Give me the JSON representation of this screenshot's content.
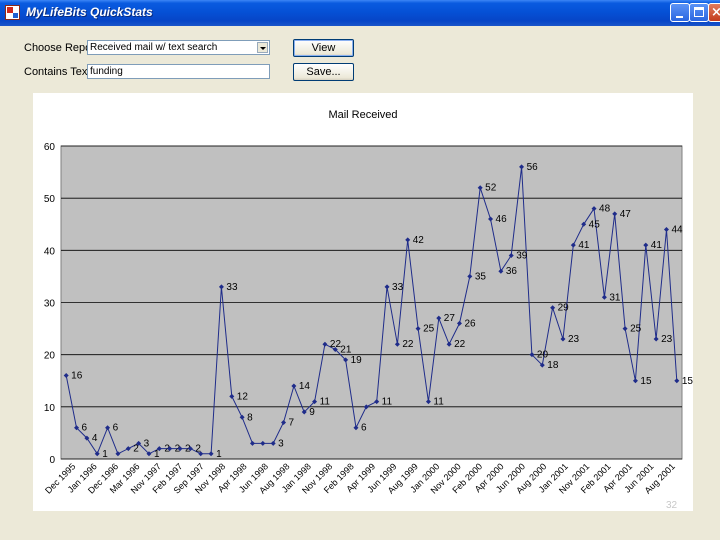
{
  "window": {
    "title": "MyLifeBits QuickStats"
  },
  "form": {
    "report_label": "Choose Report:",
    "report_value": "Received mail w/ text search",
    "contains_label": "Contains Text:",
    "contains_value": "funding",
    "view_button": "View",
    "save_button": "Save..."
  },
  "page_number": "32",
  "colors": {
    "plot_background": "#c0c0c0",
    "series_line": "#1f2c8a"
  },
  "chart_data": {
    "type": "line",
    "title": "Mail Received",
    "xlabel": "",
    "ylabel": "",
    "ylim": [
      0,
      60
    ],
    "yticks": [
      0,
      10,
      20,
      30,
      40,
      50,
      60
    ],
    "ytick_labels": [
      "0",
      "10",
      "20",
      "30",
      "40",
      "50",
      "60"
    ],
    "grid": true,
    "x_tick_labels": [
      "Dec 1995",
      "Jan 1996",
      "Dec 1996",
      "Mar 1996",
      "Nov 1997",
      "Feb 1997",
      "Sep 1997",
      "Nov 1998",
      "Apr 1998",
      "Jun 1998",
      "Aug 1998",
      "Jan 1998",
      "Nov 1998",
      "Feb 1998",
      "Apr 1999",
      "Jun 1999",
      "Aug 1999",
      "Jan 2000",
      "Nov 2000",
      "Feb 2000",
      "Apr 2000",
      "Jun 2000",
      "Aug 2000",
      "Jan 2001",
      "Nov 2001",
      "Feb 2001",
      "Apr 2001",
      "Jun 2001",
      "Aug 2001"
    ],
    "series": [
      {
        "values": [
          16,
          6,
          4,
          1,
          6,
          1,
          2,
          3,
          1,
          2,
          2,
          2,
          2,
          1,
          1,
          33,
          12,
          8,
          3,
          3,
          3,
          7,
          14,
          9,
          11,
          22,
          21,
          19,
          6,
          10,
          11,
          33,
          22,
          42,
          25,
          11,
          27,
          22,
          26,
          35,
          52,
          46,
          36,
          39,
          56,
          20,
          18,
          29,
          23,
          41,
          45,
          48,
          31,
          47,
          25,
          15,
          41,
          23,
          44,
          15
        ],
        "labels": [
          "16",
          "6",
          "4",
          "1",
          "6",
          "",
          "2",
          "3",
          "1",
          "2",
          "2",
          "2",
          "2",
          "",
          "1",
          "33",
          "12",
          "8",
          "",
          "",
          "3",
          "7",
          "14",
          "9",
          "11",
          "22",
          "21",
          "19",
          "6",
          "",
          "11",
          "33",
          "22",
          "42",
          "25",
          "11",
          "27",
          "22",
          "26",
          "35",
          "52",
          "46",
          "36",
          "39",
          "56",
          "20",
          "18",
          "29",
          "23",
          "41",
          "45",
          "48",
          "31",
          "47",
          "25",
          "15",
          "41",
          "23",
          "44",
          "15"
        ]
      }
    ]
  }
}
